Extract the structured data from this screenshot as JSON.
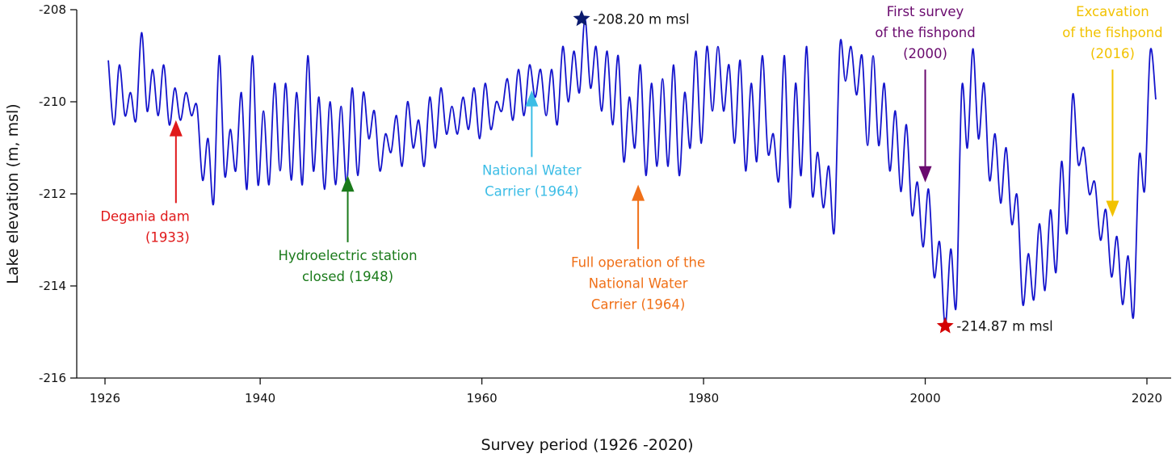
{
  "chart_data": {
    "type": "line",
    "title": "",
    "xlabel": "Survey period (1926 -2020)",
    "ylabel": "Lake elevation (m, msl)",
    "xlim": [
      1926,
      2021
    ],
    "ylim": [
      -216,
      -208
    ],
    "x_ticks": [
      1926,
      1940,
      1960,
      1980,
      2000,
      2020
    ],
    "y_ticks": [
      -208,
      -210,
      -212,
      -214,
      -216
    ],
    "x_tick_labels": [
      "1926",
      "1940",
      "1960",
      "1980",
      "2000",
      "2020"
    ],
    "y_tick_labels": [
      "-208",
      "-210",
      "-212",
      "-214",
      "-216"
    ],
    "grid": false,
    "series": [
      {
        "name": "Lake elevation",
        "color": "#1414cc",
        "start_year": 1926,
        "annual_peak": [
          -209.1,
          -209.2,
          -209.8,
          -208.5,
          -209.3,
          -209.2,
          -209.7,
          -209.8,
          -210.1,
          -210.8,
          -209.0,
          -210.6,
          -209.8,
          -209.0,
          -210.2,
          -209.6,
          -209.6,
          -209.8,
          -209.0,
          -209.9,
          -210.0,
          -210.1,
          -209.7,
          -209.8,
          -210.2,
          -210.7,
          -210.3,
          -210.0,
          -210.4,
          -209.9,
          -209.7,
          -210.1,
          -209.9,
          -209.7,
          -209.6,
          -210.0,
          -209.5,
          -209.3,
          -209.2,
          -209.3,
          -209.3,
          -208.8,
          -208.9,
          -208.2,
          -208.8,
          -208.9,
          -209.0,
          -209.9,
          -209.2,
          -209.6,
          -209.5,
          -209.2,
          -209.8,
          -208.9,
          -208.8,
          -208.8,
          -209.2,
          -209.1,
          -209.6,
          -209.0,
          -210.7,
          -209.0,
          -209.6,
          -208.8,
          -211.1,
          -211.4,
          -208.78,
          -208.8,
          -209.0,
          -209.0,
          -209.6,
          -210.2,
          -210.5,
          -211.75,
          -211.9,
          -213.05,
          -213.2,
          -209.7,
          -208.85,
          -209.6,
          -210.7,
          -211.0,
          -212.05,
          -213.3,
          -212.65,
          -212.35,
          -211.3,
          -209.85,
          -211.0,
          -211.75,
          -212.35,
          -212.93,
          -213.35,
          -211.2,
          -208.9
        ],
        "annual_trough": [
          -210.5,
          -210.3,
          -210.4,
          -210.2,
          -210.3,
          -210.5,
          -210.4,
          -210.3,
          -211.7,
          -212.2,
          -211.6,
          -211.5,
          -211.9,
          -211.8,
          -211.8,
          -211.5,
          -211.7,
          -211.8,
          -211.5,
          -211.9,
          -211.8,
          -211.8,
          -211.6,
          -210.8,
          -211.5,
          -211.1,
          -211.4,
          -211.0,
          -211.4,
          -211.0,
          -210.7,
          -210.7,
          -210.6,
          -210.8,
          -210.6,
          -210.2,
          -210.4,
          -210.3,
          -209.9,
          -210.3,
          -210.5,
          -210.0,
          -209.8,
          -209.7,
          -210.2,
          -210.5,
          -211.3,
          -211.0,
          -211.6,
          -211.4,
          -211.4,
          -211.6,
          -211.0,
          -210.9,
          -210.2,
          -210.2,
          -210.9,
          -211.5,
          -211.3,
          -211.1,
          -211.7,
          -212.3,
          -211.6,
          -212.0,
          -212.3,
          -212.8,
          -209.55,
          -209.85,
          -210.95,
          -210.95,
          -211.5,
          -211.95,
          -212.45,
          -213.15,
          -213.8,
          -214.87,
          -214.4,
          -211.0,
          -210.8,
          -211.7,
          -212.2,
          -212.65,
          -214.4,
          -214.3,
          -214.1,
          -213.7,
          -212.85,
          -211.35,
          -212.0,
          -213.0,
          -213.8,
          -214.4,
          -214.65,
          -211.9,
          -209.95
        ]
      }
    ],
    "extremes": [
      {
        "name": "max",
        "year": 1969,
        "value": -208.2,
        "label": "-208.20 m msl",
        "color": "#0a1a6e"
      },
      {
        "name": "min",
        "year": 2001.8,
        "value": -214.87,
        "label": "-214.87 m msl",
        "color": "#d40000"
      }
    ],
    "annotations": [
      {
        "id": "degania",
        "lines": [
          "Degania dam",
          "(1933)"
        ],
        "year": 1932.4,
        "tip": -210.4,
        "tail": -212.2,
        "dir": "up",
        "color": "#e0191a"
      },
      {
        "id": "hydro",
        "lines": [
          "Hydroelectric station",
          "closed (1948)"
        ],
        "year": 1947.9,
        "tip": -211.6,
        "tail": -213.05,
        "dir": "up",
        "color": "#1a7a1a"
      },
      {
        "id": "nwc",
        "lines": [
          "National Water",
          "Carrier (1964)"
        ],
        "year": 1964.5,
        "tip": -209.75,
        "tail": -211.2,
        "dir": "up",
        "color": "#3cbde6"
      },
      {
        "id": "full-op",
        "lines": [
          "Full operation of the",
          "National Water",
          "Carrier (1964)"
        ],
        "year": 1974.1,
        "tip": -211.8,
        "tail": -213.2,
        "dir": "up",
        "color": "#f07018"
      },
      {
        "id": "first-survey",
        "lines": [
          "First survey",
          "of the fishpond",
          "(2000)"
        ],
        "year": 2000.0,
        "tip": -211.75,
        "tail": -209.3,
        "dir": "down",
        "color": "#6a0a6e"
      },
      {
        "id": "excavation",
        "lines": [
          "Excavation",
          "of the fishpond",
          "(2016)"
        ],
        "year": 2016.9,
        "tip": -212.5,
        "tail": -209.3,
        "dir": "down",
        "color": "#f2c200"
      }
    ]
  }
}
